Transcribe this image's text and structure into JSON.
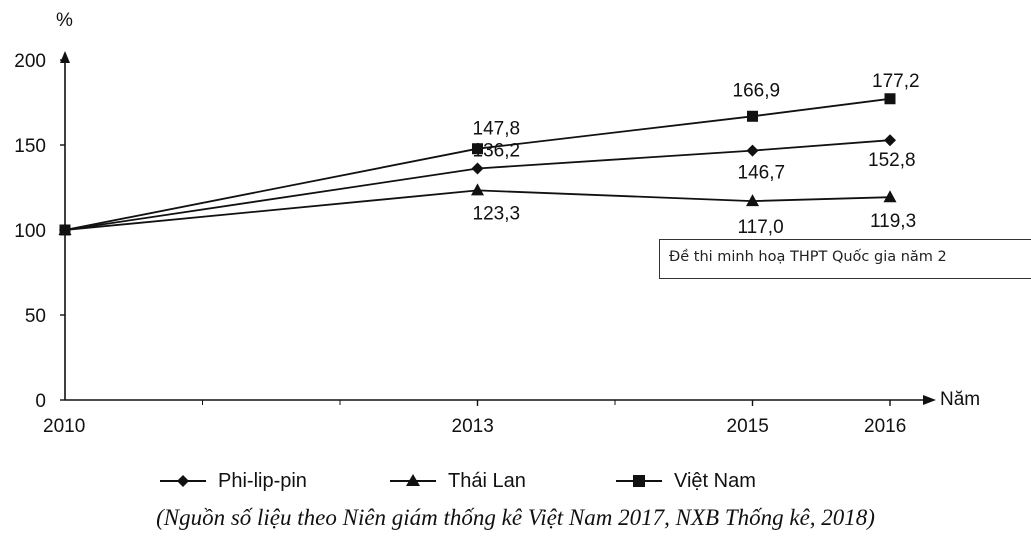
{
  "chart_data": {
    "type": "line",
    "ylabel": "%",
    "xlabel": "Năm",
    "categories": [
      "2010",
      "2013",
      "2015",
      "2016"
    ],
    "yticks": [
      "0",
      "50",
      "100",
      "150",
      "200"
    ],
    "ylim": [
      0,
      200
    ],
    "series": [
      {
        "name": "Phi-lip-pin",
        "marker": "diamond",
        "values": [
          100,
          136.2,
          146.7,
          152.8
        ],
        "labels": [
          "",
          "136,2",
          "146,7",
          "152,8"
        ]
      },
      {
        "name": "Thái Lan",
        "marker": "triangle",
        "values": [
          100,
          123.3,
          117.0,
          119.3
        ],
        "labels": [
          "",
          "123,3",
          "117,0",
          "119,3"
        ]
      },
      {
        "name": "Việt Nam",
        "marker": "square",
        "values": [
          100,
          147.8,
          166.9,
          177.2
        ],
        "labels": [
          "",
          "147,8",
          "166,9",
          "177,2"
        ]
      }
    ],
    "color": "#111111"
  },
  "watermark": "Đề thi minh hoạ THPT Quốc gia năm 2",
  "source_note": "(Nguồn số liệu theo Niên giám thống kê Việt Nam 2017, NXB Thống kê, 2018)"
}
